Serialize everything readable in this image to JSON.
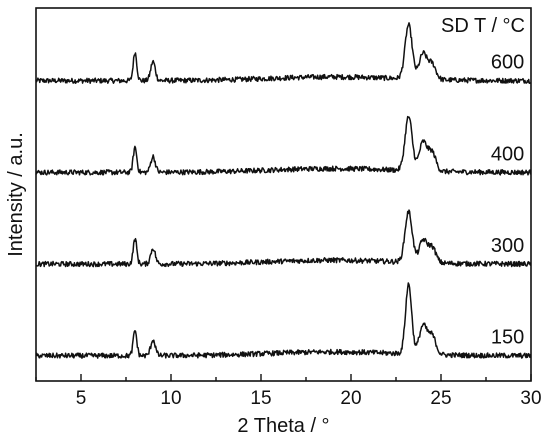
{
  "chart_data": {
    "type": "line",
    "xlabel": "2 Theta / °",
    "ylabel": "Intensity / a.u.",
    "legend_title": "SD T / °C",
    "xlim": [
      2.5,
      30
    ],
    "x_ticks": [
      5,
      10,
      15,
      20,
      25,
      30
    ],
    "x_tick_labels": [
      "5",
      "10",
      "15",
      "20",
      "25",
      "30"
    ],
    "y_ticks": "none",
    "stacked_offsets": true,
    "grid": false,
    "series": [
      {
        "name": "600",
        "baseline": 95,
        "peaks": [
          {
            "x": 8.0,
            "height": 9,
            "width": 0.14
          },
          {
            "x": 9.0,
            "height": 6,
            "width": 0.18
          },
          {
            "x": 23.2,
            "height": 17,
            "width": 0.28
          },
          {
            "x": 24.0,
            "height": 8,
            "width": 0.3
          },
          {
            "x": 24.5,
            "height": 5,
            "width": 0.3
          }
        ],
        "label_x": 28.7
      },
      {
        "name": "400",
        "baseline": 66,
        "peaks": [
          {
            "x": 8.0,
            "height": 8,
            "width": 0.14
          },
          {
            "x": 9.0,
            "height": 5,
            "width": 0.18
          },
          {
            "x": 23.2,
            "height": 17,
            "width": 0.28
          },
          {
            "x": 24.0,
            "height": 9,
            "width": 0.3
          },
          {
            "x": 24.5,
            "height": 6,
            "width": 0.3
          }
        ],
        "label_x": 28.7
      },
      {
        "name": "300",
        "baseline": 37,
        "peaks": [
          {
            "x": 8.0,
            "height": 8,
            "width": 0.14
          },
          {
            "x": 9.0,
            "height": 5,
            "width": 0.18
          },
          {
            "x": 23.2,
            "height": 16,
            "width": 0.28
          },
          {
            "x": 24.0,
            "height": 7,
            "width": 0.3
          },
          {
            "x": 24.5,
            "height": 5,
            "width": 0.3
          }
        ],
        "label_x": 28.7
      },
      {
        "name": "150",
        "baseline": 8,
        "peaks": [
          {
            "x": 8.0,
            "height": 8,
            "width": 0.14
          },
          {
            "x": 9.0,
            "height": 5,
            "width": 0.18
          },
          {
            "x": 23.2,
            "height": 22,
            "width": 0.24
          },
          {
            "x": 24.0,
            "height": 9,
            "width": 0.3
          },
          {
            "x": 24.5,
            "height": 6,
            "width": 0.3
          }
        ],
        "label_x": 28.7
      }
    ]
  }
}
